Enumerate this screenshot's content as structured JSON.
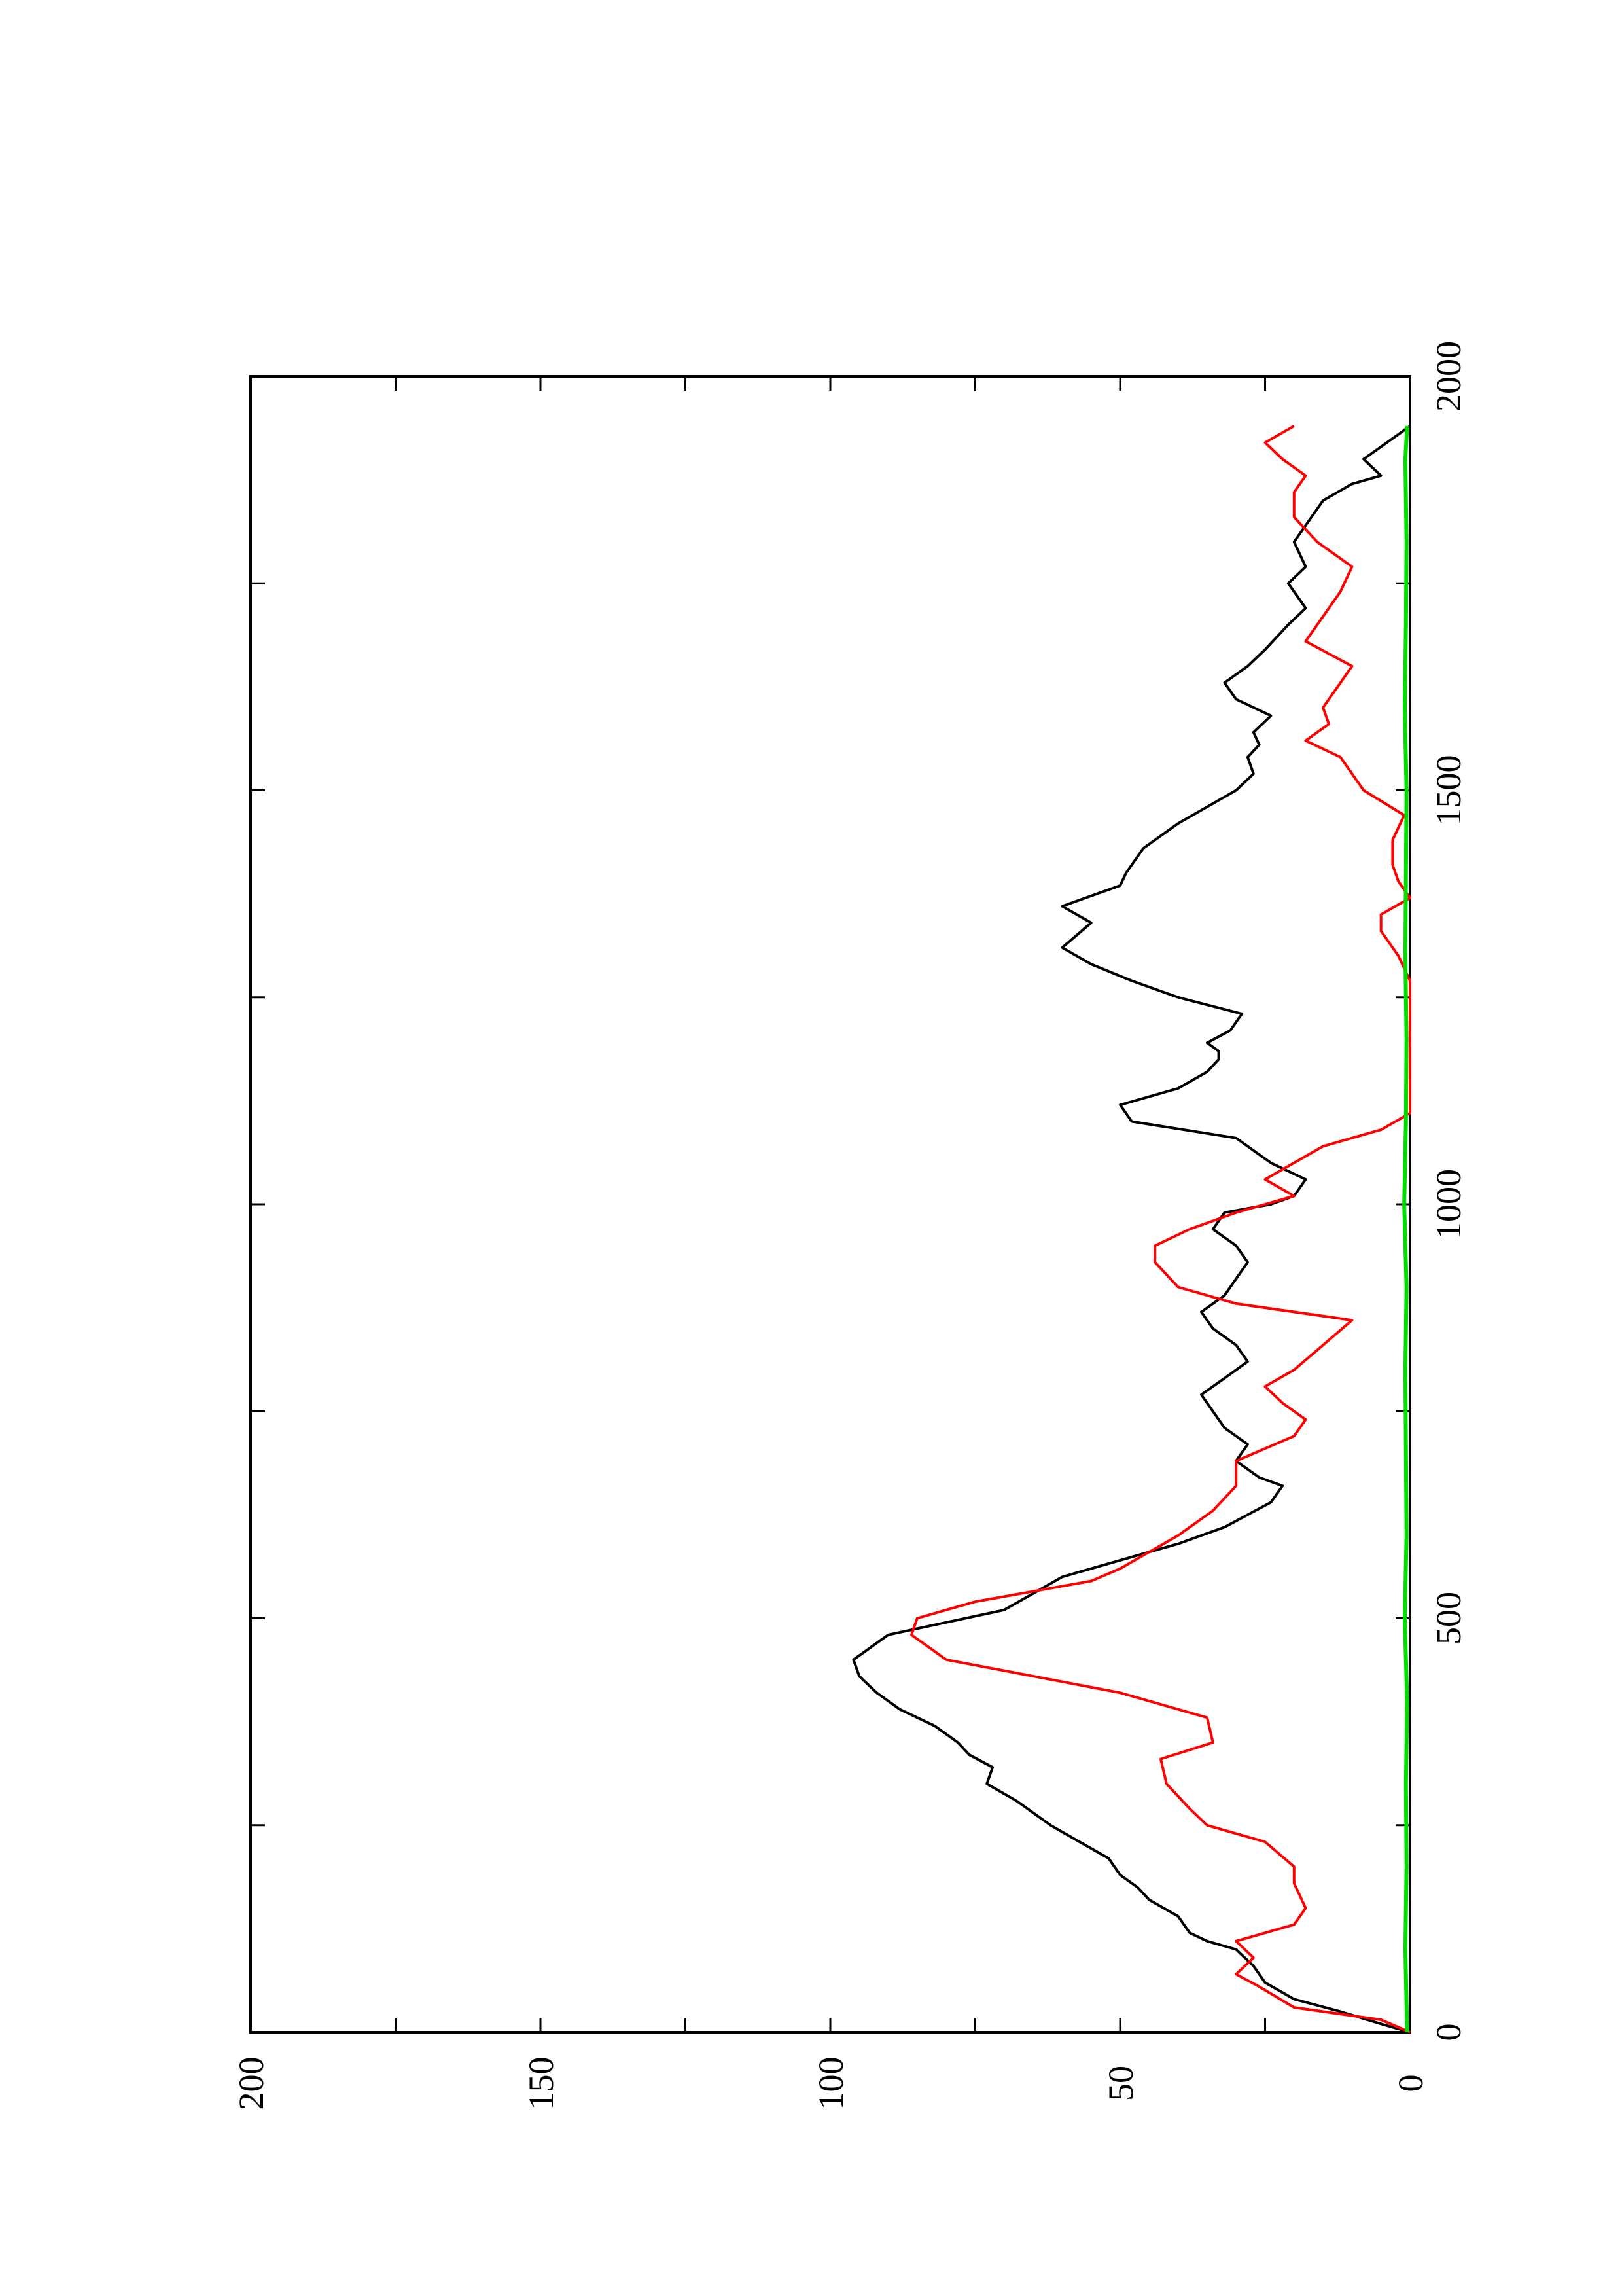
{
  "chart_data": {
    "type": "line",
    "orientation": "rotated-90-clockwise",
    "title": "",
    "xlabel": "",
    "ylabel": "",
    "xlim": [
      0,
      2000
    ],
    "ylim": [
      0,
      200
    ],
    "x_ticks": [
      0,
      500,
      1000,
      1500,
      2000
    ],
    "x_tick_labels": [
      "0",
      "500",
      "1000",
      "1500",
      "2000"
    ],
    "x_minor_ticks": [
      250,
      750,
      1250,
      1750
    ],
    "y_ticks": [
      0,
      50,
      100,
      150,
      200
    ],
    "y_tick_labels": [
      "0",
      "50",
      "100",
      "150",
      "200"
    ],
    "y_minor_ticks": [
      25,
      75,
      125,
      175
    ],
    "grid": false,
    "legend": "none",
    "series": [
      {
        "color": "#000000",
        "x": [
          0,
          10,
          25,
          40,
          60,
          80,
          100,
          110,
          120,
          140,
          160,
          175,
          190,
          210,
          230,
          250,
          265,
          280,
          300,
          320,
          335,
          350,
          370,
          390,
          410,
          430,
          450,
          460,
          470,
          480,
          495,
          510,
          530,
          550,
          570,
          590,
          610,
          640,
          660,
          670,
          690,
          710,
          730,
          750,
          770,
          790,
          810,
          830,
          850,
          870,
          890,
          910,
          930,
          950,
          970,
          990,
          1000,
          1010,
          1030,
          1050,
          1080,
          1100,
          1120,
          1140,
          1160,
          1175,
          1185,
          1195,
          1210,
          1230,
          1250,
          1270,
          1290,
          1310,
          1340,
          1360,
          1385,
          1400,
          1430,
          1460,
          1480,
          1500,
          1520,
          1540,
          1555,
          1570,
          1590,
          1610,
          1630,
          1650,
          1670,
          1700,
          1720,
          1750,
          1770,
          1800,
          1830,
          1850,
          1870,
          1880,
          1900,
          1920,
          1940
        ],
        "y": [
          0,
          5,
          12,
          20,
          25,
          27,
          30,
          35,
          38,
          40,
          45,
          47,
          50,
          52,
          57,
          62,
          65,
          68,
          73,
          72,
          76,
          78,
          82,
          88,
          92,
          95,
          96,
          94,
          92,
          90,
          80,
          70,
          65,
          60,
          50,
          40,
          32,
          24,
          22,
          26,
          30,
          28,
          32,
          34,
          36,
          32,
          28,
          30,
          34,
          36,
          32,
          30,
          28,
          30,
          34,
          32,
          24,
          20,
          18,
          24,
          30,
          48,
          50,
          40,
          35,
          33,
          33,
          35,
          31,
          29,
          40,
          48,
          55,
          60,
          55,
          60,
          50,
          49,
          46,
          40,
          35,
          30,
          27,
          28,
          26,
          27,
          24,
          30,
          32,
          28,
          25,
          21,
          18,
          21,
          18,
          20,
          17,
          15,
          10,
          5,
          8,
          4,
          0
        ]
      },
      {
        "color": "#ff0000",
        "x": [
          0,
          15,
          30,
          55,
          70,
          90,
          110,
          130,
          150,
          180,
          200,
          230,
          250,
          270,
          300,
          330,
          350,
          380,
          410,
          450,
          480,
          500,
          510,
          520,
          545,
          560,
          580,
          600,
          630,
          660,
          690,
          720,
          740,
          760,
          780,
          800,
          830,
          860,
          880,
          900,
          930,
          950,
          970,
          990,
          1010,
          1030,
          1070,
          1090,
          1110,
          1130,
          1150,
          1170,
          1190,
          1210,
          1230,
          1250,
          1270,
          1300,
          1330,
          1350,
          1370,
          1390,
          1410,
          1440,
          1470,
          1500,
          1520,
          1540,
          1560,
          1580,
          1600,
          1630,
          1650,
          1680,
          1700,
          1720,
          1740,
          1770,
          1800,
          1830,
          1860,
          1880,
          1900,
          1920,
          1940
        ],
        "y": [
          0,
          5,
          20,
          26,
          30,
          27,
          30,
          20,
          18,
          20,
          20,
          25,
          35,
          38,
          42,
          43,
          34,
          35,
          50,
          80,
          86,
          85,
          80,
          75,
          55,
          50,
          45,
          40,
          34,
          30,
          30,
          20,
          18,
          22,
          25,
          20,
          15,
          10,
          30,
          40,
          44,
          44,
          38,
          30,
          20,
          25,
          15,
          5,
          0,
          0,
          0,
          0,
          0,
          0,
          0,
          0,
          0,
          2,
          5,
          5,
          0,
          2,
          3,
          3,
          1,
          8,
          10,
          12,
          18,
          14,
          15,
          12,
          10,
          18,
          16,
          14,
          12,
          10,
          16,
          20,
          20,
          18,
          22,
          25,
          20
        ]
      },
      {
        "color": "#00dd00",
        "x": [
          0,
          100,
          200,
          300,
          400,
          500,
          600,
          700,
          800,
          900,
          1000,
          1100,
          1200,
          1300,
          1400,
          1500,
          1600,
          1700,
          1800,
          1900,
          1940
        ],
        "y": [
          0.5,
          0.8,
          0.6,
          0.7,
          0.5,
          0.9,
          0.6,
          0.7,
          0.8,
          0.6,
          1.0,
          0.7,
          0.6,
          0.8,
          0.7,
          0.6,
          0.9,
          0.7,
          0.6,
          0.8,
          0.5
        ]
      }
    ]
  }
}
